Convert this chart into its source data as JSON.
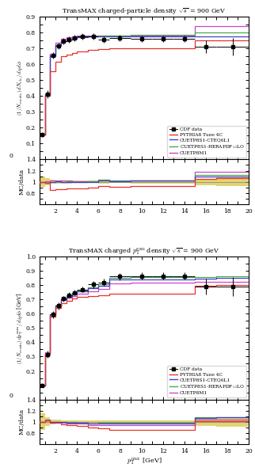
{
  "title1": "TransMAX charged-particle density $\\sqrt{s}$ = 900 GeV",
  "title2": "TransMAX charged $p_\\mathrm{T}^\\mathrm{sum}$ density $\\sqrt{s}$ = 900 GeV",
  "xlabel": "$p_\\mathrm{T}^\\mathrm{max}$ [GeV]",
  "ylabel1": "$(1/N_\\mathrm{events})\\, dN_\\mathrm{ch}\\, /\\, d\\eta\\, d\\phi$",
  "ylabel2": "$(1/N_\\mathrm{events})\\, dp_\\mathrm{T}^\\mathrm{sum}\\, /\\, d\\eta\\, d\\phi$ [GeV]",
  "ylabel_ratio": "MC/data",
  "bin_edges": [
    0.5,
    1.0,
    1.5,
    2.0,
    2.5,
    3.0,
    3.5,
    4.0,
    5.0,
    6.0,
    7.0,
    9.0,
    11.0,
    13.0,
    15.0,
    17.0,
    20.0
  ],
  "data1_x": [
    0.75,
    1.25,
    1.75,
    2.25,
    2.75,
    3.25,
    3.75,
    4.5,
    5.5,
    6.5,
    8.0,
    10.0,
    12.0,
    14.0,
    16.0,
    18.5
  ],
  "data1_y": [
    0.155,
    0.41,
    0.655,
    0.715,
    0.745,
    0.755,
    0.765,
    0.775,
    0.775,
    0.755,
    0.765,
    0.76,
    0.76,
    0.76,
    0.71,
    0.71
  ],
  "data1_yerr": [
    0.015,
    0.025,
    0.02,
    0.02,
    0.02,
    0.02,
    0.02,
    0.02,
    0.02,
    0.02,
    0.02,
    0.02,
    0.02,
    0.02,
    0.04,
    0.055
  ],
  "data1_xerr": [
    0.25,
    0.25,
    0.25,
    0.25,
    0.25,
    0.25,
    0.25,
    0.5,
    0.5,
    0.5,
    1.0,
    1.0,
    1.0,
    1.0,
    1.0,
    1.5
  ],
  "data2_x": [
    0.75,
    1.25,
    1.75,
    2.25,
    2.75,
    3.25,
    3.75,
    4.5,
    5.5,
    6.5,
    8.0,
    10.0,
    12.0,
    14.0,
    16.0,
    18.5
  ],
  "data2_y": [
    0.1,
    0.315,
    0.595,
    0.655,
    0.705,
    0.73,
    0.748,
    0.77,
    0.805,
    0.82,
    0.862,
    0.865,
    0.865,
    0.865,
    0.79,
    0.79
  ],
  "data2_yerr": [
    0.015,
    0.025,
    0.025,
    0.025,
    0.02,
    0.02,
    0.02,
    0.02,
    0.025,
    0.025,
    0.025,
    0.025,
    0.025,
    0.025,
    0.055,
    0.065
  ],
  "data2_xerr": [
    0.25,
    0.25,
    0.25,
    0.25,
    0.25,
    0.25,
    0.25,
    0.5,
    0.5,
    0.5,
    1.0,
    1.0,
    1.0,
    1.0,
    1.0,
    1.5
  ],
  "pythia_color": "#e8312a",
  "cteq_color": "#4040cc",
  "herapdf_color": "#4aaa4a",
  "cuetp8m1_color": "#cc44cc",
  "data_color": "black",
  "mc1_pythia": [
    0.155,
    0.4,
    0.558,
    0.618,
    0.65,
    0.663,
    0.672,
    0.683,
    0.692,
    0.695,
    0.7,
    0.702,
    0.702,
    0.702,
    0.75,
    0.752
  ],
  "mc1_cteq": [
    0.155,
    0.405,
    0.65,
    0.718,
    0.743,
    0.753,
    0.762,
    0.77,
    0.774,
    0.774,
    0.774,
    0.774,
    0.774,
    0.774,
    0.774,
    0.774
  ],
  "mc1_herapdf": [
    0.155,
    0.405,
    0.652,
    0.72,
    0.746,
    0.757,
    0.766,
    0.773,
    0.777,
    0.779,
    0.781,
    0.783,
    0.783,
    0.783,
    0.8,
    0.802
  ],
  "mc1_cuetp8m1": [
    0.155,
    0.415,
    0.668,
    0.733,
    0.758,
    0.769,
    0.774,
    0.779,
    0.781,
    0.781,
    0.781,
    0.781,
    0.781,
    0.781,
    0.838,
    0.84
  ],
  "mc2_pythia": [
    0.1,
    0.322,
    0.582,
    0.64,
    0.675,
    0.69,
    0.706,
    0.716,
    0.726,
    0.728,
    0.738,
    0.74,
    0.74,
    0.74,
    0.798,
    0.8
  ],
  "mc2_cteq": [
    0.1,
    0.322,
    0.595,
    0.655,
    0.7,
    0.72,
    0.74,
    0.757,
    0.778,
    0.798,
    0.838,
    0.84,
    0.84,
    0.84,
    0.848,
    0.85
  ],
  "mc2_herapdf": [
    0.1,
    0.322,
    0.597,
    0.657,
    0.704,
    0.726,
    0.746,
    0.762,
    0.782,
    0.805,
    0.852,
    0.856,
    0.856,
    0.856,
    0.858,
    0.86
  ],
  "mc2_cuetp8m1": [
    0.1,
    0.328,
    0.596,
    0.65,
    0.696,
    0.712,
    0.724,
    0.742,
    0.757,
    0.776,
    0.812,
    0.816,
    0.816,
    0.816,
    0.822,
    0.825
  ],
  "ylim1": [
    0.0,
    0.9
  ],
  "ylim2": [
    0.0,
    1.0
  ],
  "ylim_ratio": [
    0.6,
    1.4
  ],
  "xlim": [
    0.5,
    20.0
  ],
  "yticks1": [
    0.1,
    0.2,
    0.3,
    0.4,
    0.5,
    0.6,
    0.7,
    0.8,
    0.9
  ],
  "yticks2": [
    0.2,
    0.3,
    0.4,
    0.5,
    0.6,
    0.7,
    0.8,
    0.9,
    1.0
  ],
  "yticks_ratio": [
    0.8,
    1.0,
    1.2,
    1.4
  ],
  "legend_labels": [
    "CDF data",
    "PYTHIA8 Tune 4C",
    "CUETP8S1-CTEQ6L1",
    "CUETP8S1-HERAPDF$_{1.5}$LO",
    "CUETP8M1"
  ]
}
